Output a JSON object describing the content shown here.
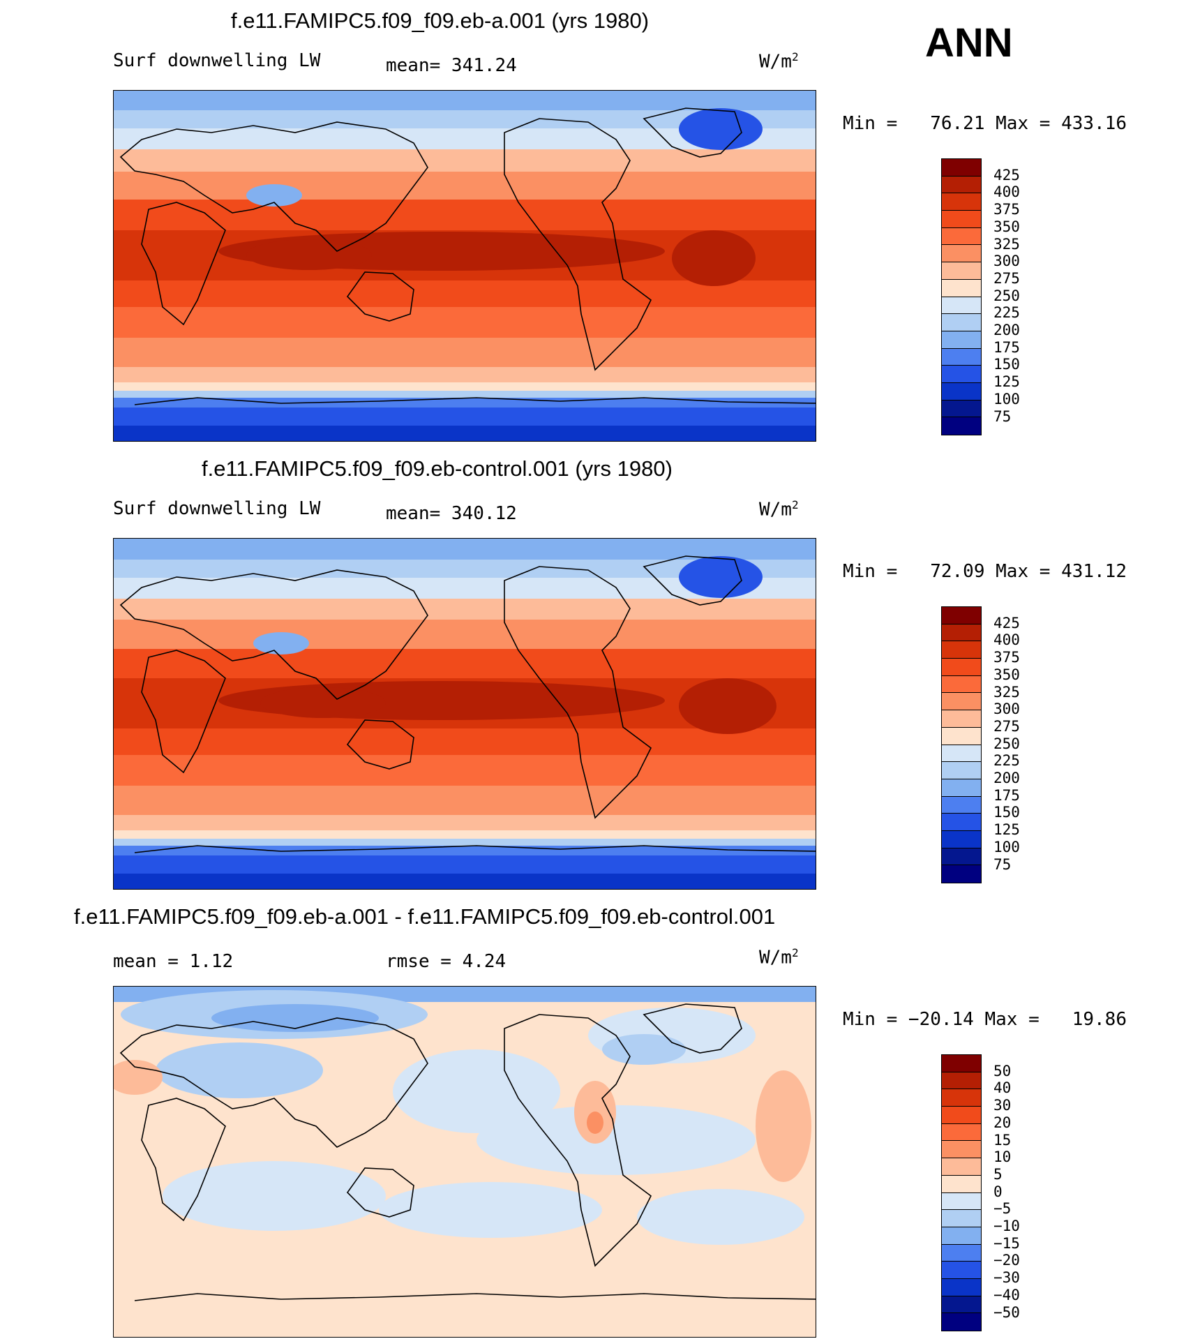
{
  "season": "ANN",
  "units_base": "W/m",
  "units_exp": "2",
  "panels": [
    {
      "title": "f.e11.FAMIPC5.f09_f09.eb-a.001 (yrs 1980)",
      "left_label": "Surf downwelling LW",
      "mid_label": "mean= 341.24",
      "minmax": "Min =   76.21 Max = 433.16",
      "colorbar": {
        "labels": [
          "425",
          "400",
          "375",
          "350",
          "325",
          "300",
          "275",
          "250",
          "225",
          "200",
          "175",
          "150",
          "125",
          "100",
          "75"
        ],
        "colors": [
          "#7f0000",
          "#b41f04",
          "#d7340a",
          "#f14b1b",
          "#fb6a3a",
          "#fb9063",
          "#fdbb99",
          "#fee3cd",
          "#d6e6f7",
          "#b0cff3",
          "#82b0f0",
          "#4d7ff0",
          "#2553e6",
          "#0a34c8",
          "#04178f",
          "#000080"
        ]
      }
    },
    {
      "title": "f.e11.FAMIPC5.f09_f09.eb-control.001 (yrs 1980)",
      "left_label": "Surf downwelling LW",
      "mid_label": "mean= 340.12",
      "minmax": "Min =   72.09 Max = 431.12",
      "colorbar": {
        "labels": [
          "425",
          "400",
          "375",
          "350",
          "325",
          "300",
          "275",
          "250",
          "225",
          "200",
          "175",
          "150",
          "125",
          "100",
          "75"
        ],
        "colors": [
          "#7f0000",
          "#b41f04",
          "#d7340a",
          "#f14b1b",
          "#fb6a3a",
          "#fb9063",
          "#fdbb99",
          "#fee3cd",
          "#d6e6f7",
          "#b0cff3",
          "#82b0f0",
          "#4d7ff0",
          "#2553e6",
          "#0a34c8",
          "#04178f",
          "#000080"
        ]
      }
    },
    {
      "title": "f.e11.FAMIPC5.f09_f09.eb-a.001 - f.e11.FAMIPC5.f09_f09.eb-control.001",
      "left_label": "mean =    1.12",
      "mid_label": "rmse =    4.24",
      "minmax": "Min = −20.14 Max =   19.86",
      "colorbar": {
        "labels": [
          "50",
          "40",
          "30",
          "20",
          "15",
          "10",
          "5",
          "0",
          "−5",
          "−10",
          "−15",
          "−20",
          "−30",
          "−40",
          "−50"
        ],
        "colors": [
          "#7f0000",
          "#b41f04",
          "#d7340a",
          "#f14b1b",
          "#fb6a3a",
          "#fb9063",
          "#fdbb99",
          "#fee3cd",
          "#d6e6f7",
          "#b0cff3",
          "#82b0f0",
          "#4d7ff0",
          "#2553e6",
          "#0a34c8",
          "#04178f",
          "#000080"
        ]
      }
    }
  ]
}
